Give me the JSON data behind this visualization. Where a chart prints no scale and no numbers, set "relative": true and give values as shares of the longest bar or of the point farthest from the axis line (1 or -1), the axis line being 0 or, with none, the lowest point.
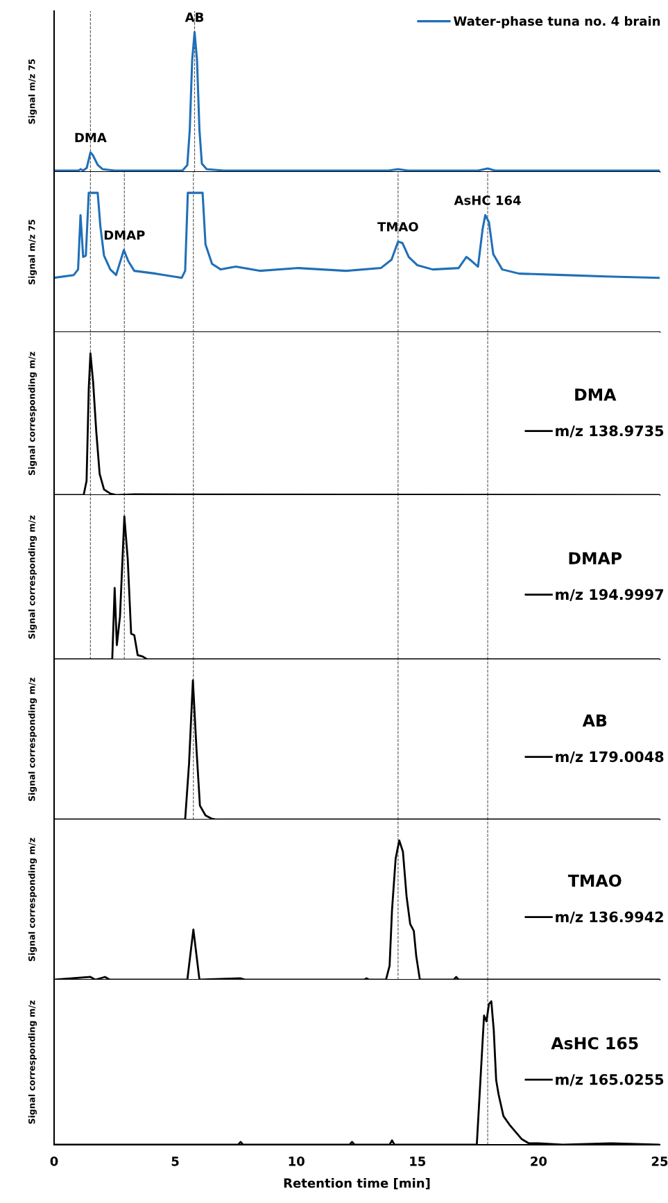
{
  "chart_data": [
    {
      "type": "line",
      "ylabel": "Signal m/z 75",
      "relative": true,
      "xlim": [
        0,
        25
      ],
      "xticks": [
        0,
        5,
        10,
        15,
        20,
        25
      ],
      "tick_labels": false,
      "legend": "top right",
      "grid": false,
      "series": [
        {
          "name": "Water-phase tuna no. 4 brain",
          "color": "#1f6fb8",
          "x": [
            0,
            1.0,
            1.1,
            1.2,
            1.35,
            1.5,
            1.6,
            1.8,
            2.0,
            2.5,
            3,
            5.3,
            5.5,
            5.6,
            5.7,
            5.8,
            5.9,
            6.0,
            6.1,
            6.3,
            7,
            13.8,
            14.2,
            14.6,
            17.5,
            17.9,
            18.2,
            25
          ],
          "values": [
            0.01,
            0.01,
            0.02,
            0.01,
            0.03,
            0.14,
            0.12,
            0.05,
            0.02,
            0.01,
            0.01,
            0.01,
            0.05,
            0.3,
            0.8,
            1.0,
            0.8,
            0.3,
            0.06,
            0.02,
            0.01,
            0.01,
            0.02,
            0.01,
            0.01,
            0.025,
            0.01,
            0.01
          ]
        }
      ],
      "annotations": [
        {
          "text": "DMA",
          "x": 1.5,
          "y": 0.14
        },
        {
          "text": "AB",
          "x": 5.8,
          "y": 1.0
        }
      ],
      "ref_lines": [
        {
          "axis": "x",
          "value": 1.5,
          "color": "#555555",
          "line_style": "dashed"
        },
        {
          "axis": "x",
          "value": 5.8,
          "color": "#555555",
          "line_style": "dashed"
        }
      ]
    },
    {
      "type": "line",
      "ylabel": "Signal m/z 75",
      "relative": true,
      "xlim": [
        0,
        25
      ],
      "xticks": [
        0,
        5,
        10,
        15,
        20,
        25
      ],
      "tick_labels": false,
      "grid": false,
      "series": [
        {
          "color": "#1f6fb8",
          "x": [
            0,
            0.81,
            0.99,
            1.09,
            1.2,
            1.31,
            1.43,
            1.8,
            1.91,
            2.06,
            2.32,
            2.56,
            2.88,
            3.06,
            3.31,
            4.2,
            5.27,
            5.41,
            5.52,
            6.13,
            6.25,
            6.52,
            6.88,
            7.5,
            8.49,
            10.09,
            12.06,
            13.49,
            13.93,
            14.2,
            14.38,
            14.64,
            15.0,
            15.63,
            16.7,
            17.02,
            17.24,
            17.5,
            17.69,
            17.8,
            17.95,
            18.13,
            18.5,
            19.2,
            21.0,
            22.8,
            25
          ],
          "values": [
            0.39,
            0.41,
            0.45,
            0.84,
            0.54,
            0.55,
            1.0,
            1.0,
            0.76,
            0.55,
            0.45,
            0.41,
            0.59,
            0.51,
            0.44,
            0.42,
            0.39,
            0.44,
            1.0,
            1.0,
            0.63,
            0.49,
            0.45,
            0.47,
            0.44,
            0.46,
            0.44,
            0.46,
            0.52,
            0.65,
            0.64,
            0.54,
            0.48,
            0.45,
            0.46,
            0.54,
            0.51,
            0.47,
            0.74,
            0.84,
            0.79,
            0.56,
            0.45,
            0.42,
            0.41,
            0.4,
            0.39
          ]
        }
      ],
      "annotations": [
        {
          "text": "DMAP",
          "x": 2.9,
          "y": 0.59
        },
        {
          "text": "TMAO",
          "x": 14.2,
          "y": 0.65
        },
        {
          "text": "AsHC 164",
          "x": 17.9,
          "y": 0.84
        }
      ],
      "ref_lines": [
        {
          "axis": "x",
          "value": 1.5,
          "color": "#555555",
          "line_style": "dashed"
        },
        {
          "axis": "x",
          "value": 2.9,
          "color": "#555555",
          "line_style": "dashed"
        },
        {
          "axis": "x",
          "value": 5.75,
          "color": "#555555",
          "line_style": "dashed"
        },
        {
          "axis": "x",
          "value": 14.2,
          "color": "#555555",
          "line_style": "dashed"
        },
        {
          "axis": "x",
          "value": 17.9,
          "color": "#555555",
          "line_style": "dashed"
        }
      ]
    },
    {
      "type": "line",
      "ylabel": "Signal corresponding m/z",
      "relative": true,
      "xlim": [
        0,
        25
      ],
      "xticks": [
        0,
        5,
        10,
        15,
        20,
        25
      ],
      "tick_labels": false,
      "legend": "right",
      "legend_title": "DMA",
      "grid": false,
      "series": [
        {
          "name": "m/z 138.9735",
          "color": "#000000",
          "x": [
            0,
            1.22,
            1.34,
            1.43,
            1.5,
            1.61,
            1.74,
            1.88,
            2.06,
            2.32,
            2.59,
            3.31,
            25
          ],
          "values": [
            0,
            0,
            0.1,
            0.75,
            1.0,
            0.8,
            0.45,
            0.15,
            0.04,
            0.01,
            0,
            0.005,
            0
          ]
        }
      ],
      "ref_lines": [
        {
          "axis": "x",
          "value": 1.5,
          "color": "#555555",
          "line_style": "dashed"
        },
        {
          "axis": "x",
          "value": 2.9,
          "color": "#555555",
          "line_style": "dashed"
        },
        {
          "axis": "x",
          "value": 5.75,
          "color": "#555555",
          "line_style": "dashed"
        },
        {
          "axis": "x",
          "value": 14.2,
          "color": "#555555",
          "line_style": "dashed"
        },
        {
          "axis": "x",
          "value": 17.9,
          "color": "#555555",
          "line_style": "dashed"
        }
      ]
    },
    {
      "type": "line",
      "ylabel": "Signal corresponding m/z",
      "relative": true,
      "xlim": [
        0,
        25
      ],
      "xticks": [
        0,
        5,
        10,
        15,
        20,
        25
      ],
      "tick_labels": false,
      "legend": "right",
      "legend_title": "DMAP",
      "grid": false,
      "series": [
        {
          "name": "m/z 194.9997",
          "color": "#000000",
          "x": [
            0,
            2.4,
            2.5,
            2.59,
            2.72,
            2.9,
            3.04,
            3.18,
            3.31,
            3.45,
            3.66,
            3.84,
            25
          ],
          "values": [
            0,
            0,
            0.5,
            0.1,
            0.3,
            1.0,
            0.7,
            0.18,
            0.17,
            0.03,
            0.02,
            0,
            0
          ]
        }
      ],
      "ref_lines": [
        {
          "axis": "x",
          "value": 1.5,
          "color": "#555555",
          "line_style": "dashed"
        },
        {
          "axis": "x",
          "value": 2.9,
          "color": "#555555",
          "line_style": "dashed"
        },
        {
          "axis": "x",
          "value": 5.75,
          "color": "#555555",
          "line_style": "dashed"
        },
        {
          "axis": "x",
          "value": 14.2,
          "color": "#555555",
          "line_style": "dashed"
        },
        {
          "axis": "x",
          "value": 17.9,
          "color": "#555555",
          "line_style": "dashed"
        }
      ]
    },
    {
      "type": "line",
      "ylabel": "Signal corresponding m/z",
      "relative": true,
      "xlim": [
        0,
        25
      ],
      "xticks": [
        0,
        5,
        10,
        15,
        20,
        25
      ],
      "tick_labels": false,
      "legend": "right",
      "legend_title": "AB",
      "grid": false,
      "series": [
        {
          "name": "m/z 179.0048",
          "color": "#000000",
          "x": [
            0,
            5.41,
            5.57,
            5.73,
            5.88,
            6.02,
            6.25,
            6.52,
            6.7,
            25
          ],
          "values": [
            0,
            0,
            0.4,
            1.0,
            0.5,
            0.1,
            0.03,
            0.005,
            0,
            0
          ]
        }
      ],
      "ref_lines": [
        {
          "axis": "x",
          "value": 5.75,
          "color": "#555555",
          "line_style": "dashed"
        },
        {
          "axis": "x",
          "value": 14.2,
          "color": "#555555",
          "line_style": "dashed"
        },
        {
          "axis": "x",
          "value": 17.9,
          "color": "#555555",
          "line_style": "dashed"
        }
      ]
    },
    {
      "type": "line",
      "ylabel": "Signal corresponding m/z",
      "relative": true,
      "xlim": [
        0,
        25
      ],
      "xticks": [
        0,
        5,
        10,
        15,
        20,
        25
      ],
      "tick_labels": false,
      "legend": "right",
      "legend_title": "TMAO",
      "grid": false,
      "series": [
        {
          "name": "m/z 136.9942",
          "color": "#000000",
          "x": [
            0,
            1.5,
            1.7,
            2.1,
            2.3,
            5.5,
            5.75,
            6.0,
            7.7,
            7.9,
            12.8,
            12.9,
            13.0,
            13.7,
            13.85,
            13.95,
            14.1,
            14.25,
            14.4,
            14.55,
            14.7,
            14.85,
            14.95,
            15.1,
            16.5,
            16.6,
            16.7,
            25
          ],
          "values": [
            0,
            0.02,
            0,
            0.02,
            0,
            0,
            0.36,
            0,
            0.01,
            0,
            0,
            0.01,
            0,
            0,
            0.1,
            0.5,
            0.87,
            1.0,
            0.92,
            0.6,
            0.4,
            0.35,
            0.17,
            0,
            0,
            0.02,
            0,
            0
          ]
        }
      ],
      "ref_lines": [
        {
          "axis": "x",
          "value": 14.2,
          "color": "#555555",
          "line_style": "dashed"
        },
        {
          "axis": "x",
          "value": 17.9,
          "color": "#555555",
          "line_style": "dashed"
        }
      ]
    },
    {
      "type": "line",
      "ylabel": "Signal corresponding m/z",
      "xlabel": "Retention time [min]",
      "relative": true,
      "xlim": [
        0,
        25
      ],
      "xticks": [
        0,
        5,
        10,
        15,
        20,
        25
      ],
      "tick_labels": "x",
      "legend": "right",
      "legend_title": "AsHC 165",
      "grid": false,
      "series": [
        {
          "name": "m/z 165.0255",
          "color": "#000000",
          "x": [
            0,
            7.6,
            7.7,
            7.8,
            12.2,
            12.3,
            12.4,
            13.85,
            13.95,
            14.05,
            17.45,
            17.6,
            17.75,
            17.85,
            17.95,
            18.05,
            18.15,
            18.25,
            18.35,
            18.55,
            18.8,
            19.0,
            19.3,
            19.6,
            20.0,
            21,
            23,
            25
          ],
          "values": [
            0,
            0,
            0.02,
            0,
            0,
            0.02,
            0,
            0,
            0.03,
            0,
            0,
            0.45,
            0.9,
            0.86,
            0.98,
            1.0,
            0.8,
            0.45,
            0.35,
            0.2,
            0.14,
            0.1,
            0.04,
            0.01,
            0.01,
            0,
            0.01,
            0
          ]
        }
      ],
      "ref_lines": [
        {
          "axis": "x",
          "value": 17.9,
          "color": "#555555",
          "line_style": "dashed"
        }
      ]
    }
  ]
}
